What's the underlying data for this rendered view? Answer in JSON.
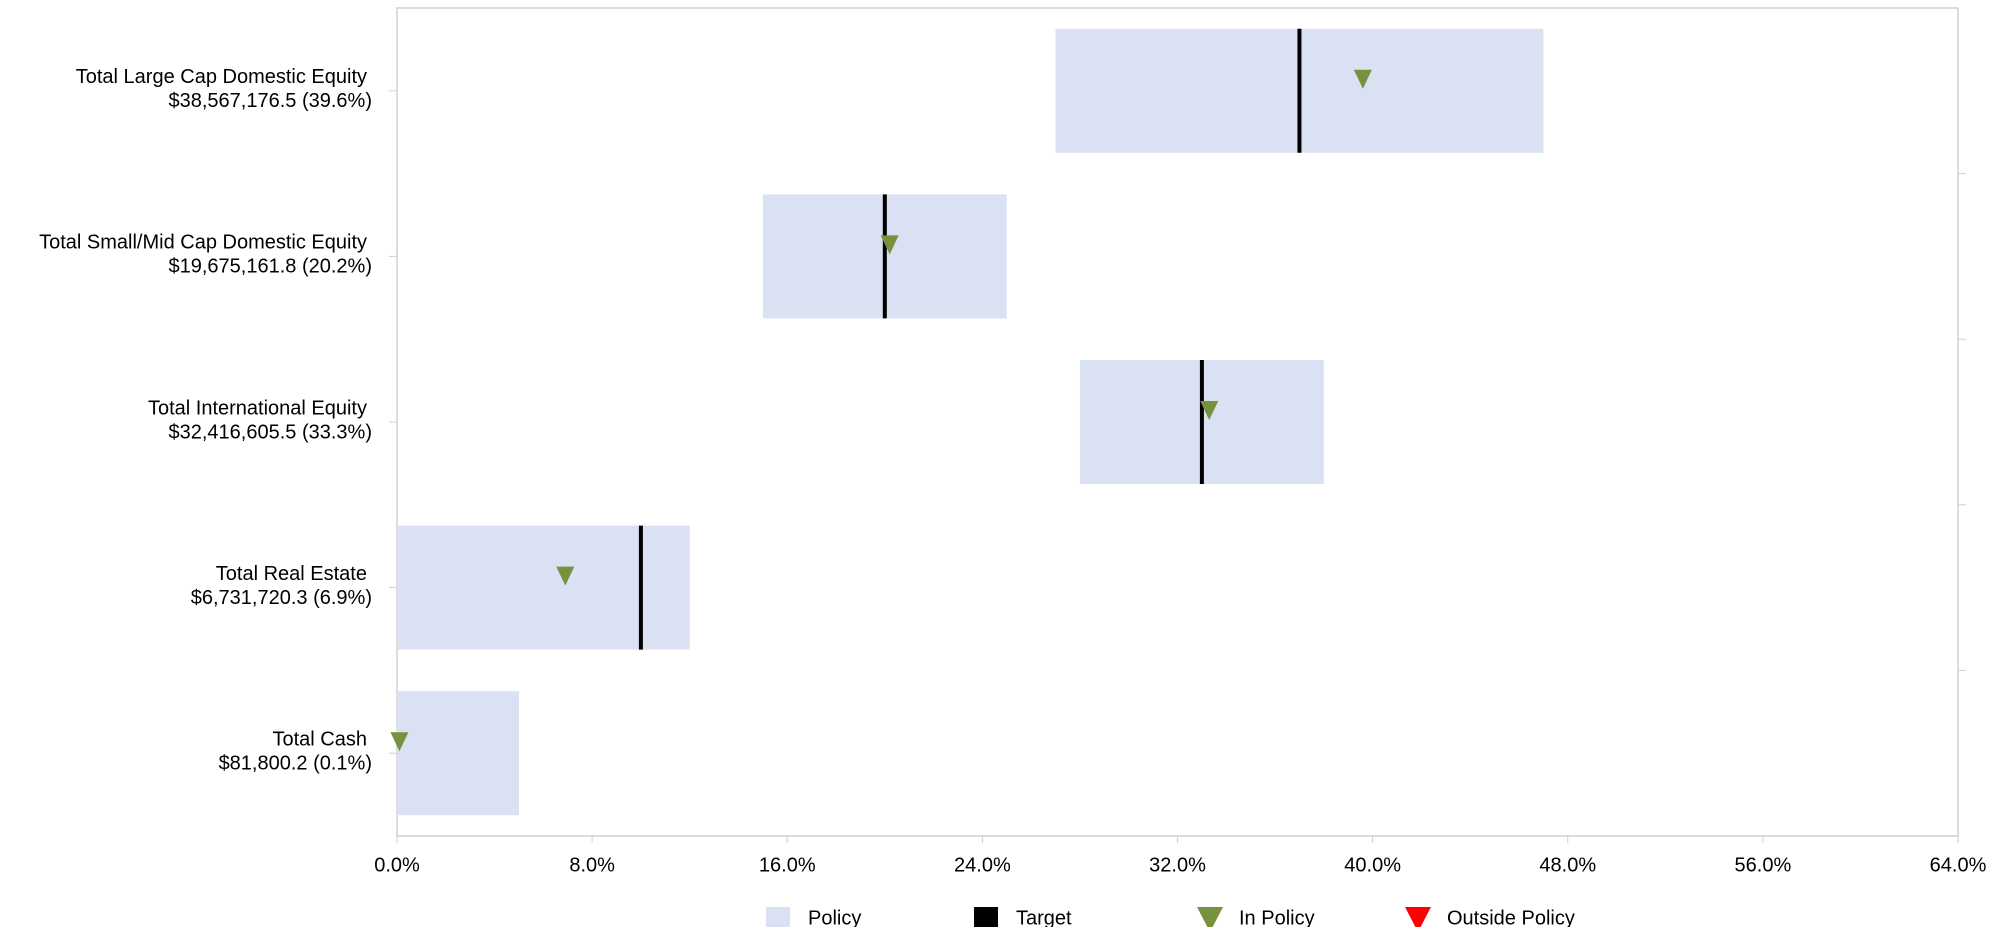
{
  "chart_data": {
    "type": "bullet",
    "categories": [
      "Total Large Cap Domestic Equity",
      "Total Small/Mid Cap Domestic Equity",
      "Total International Equity",
      "Total Real Estate",
      "Total Cash"
    ],
    "value_labels": [
      "$38,567,176.5 (39.6%)",
      "$19,675,161.8 (20.2%)",
      "$32,416,605.5 (33.3%)",
      "$6,731,720.3 (6.9%)",
      "$81,800.2 (0.1%)"
    ],
    "series": [
      {
        "name": "Policy",
        "color": "#d9e1f2",
        "min": [
          27,
          15,
          28,
          0,
          0
        ],
        "max": [
          47,
          25,
          38,
          12,
          5
        ]
      },
      {
        "name": "Target",
        "color": "#000000",
        "values": [
          37,
          20,
          33,
          10,
          null
        ]
      },
      {
        "name": "In Policy",
        "color": "#76923c",
        "values": [
          39.6,
          20.2,
          33.3,
          6.9,
          0.1
        ]
      },
      {
        "name": "Outside Policy",
        "color": "#ff0000"
      }
    ],
    "xlim": [
      0,
      64
    ],
    "xticks": [
      {
        "value": 0,
        "label": "0.0%"
      },
      {
        "value": 8,
        "label": "8.0%"
      },
      {
        "value": 16,
        "label": "16.0%"
      },
      {
        "value": 24,
        "label": "24.0%"
      },
      {
        "value": 32,
        "label": "32.0%"
      },
      {
        "value": 40,
        "label": "40.0%"
      },
      {
        "value": 48,
        "label": "48.0%"
      },
      {
        "value": 56,
        "label": "56.0%"
      },
      {
        "value": 64,
        "label": "64.0%"
      }
    ]
  }
}
